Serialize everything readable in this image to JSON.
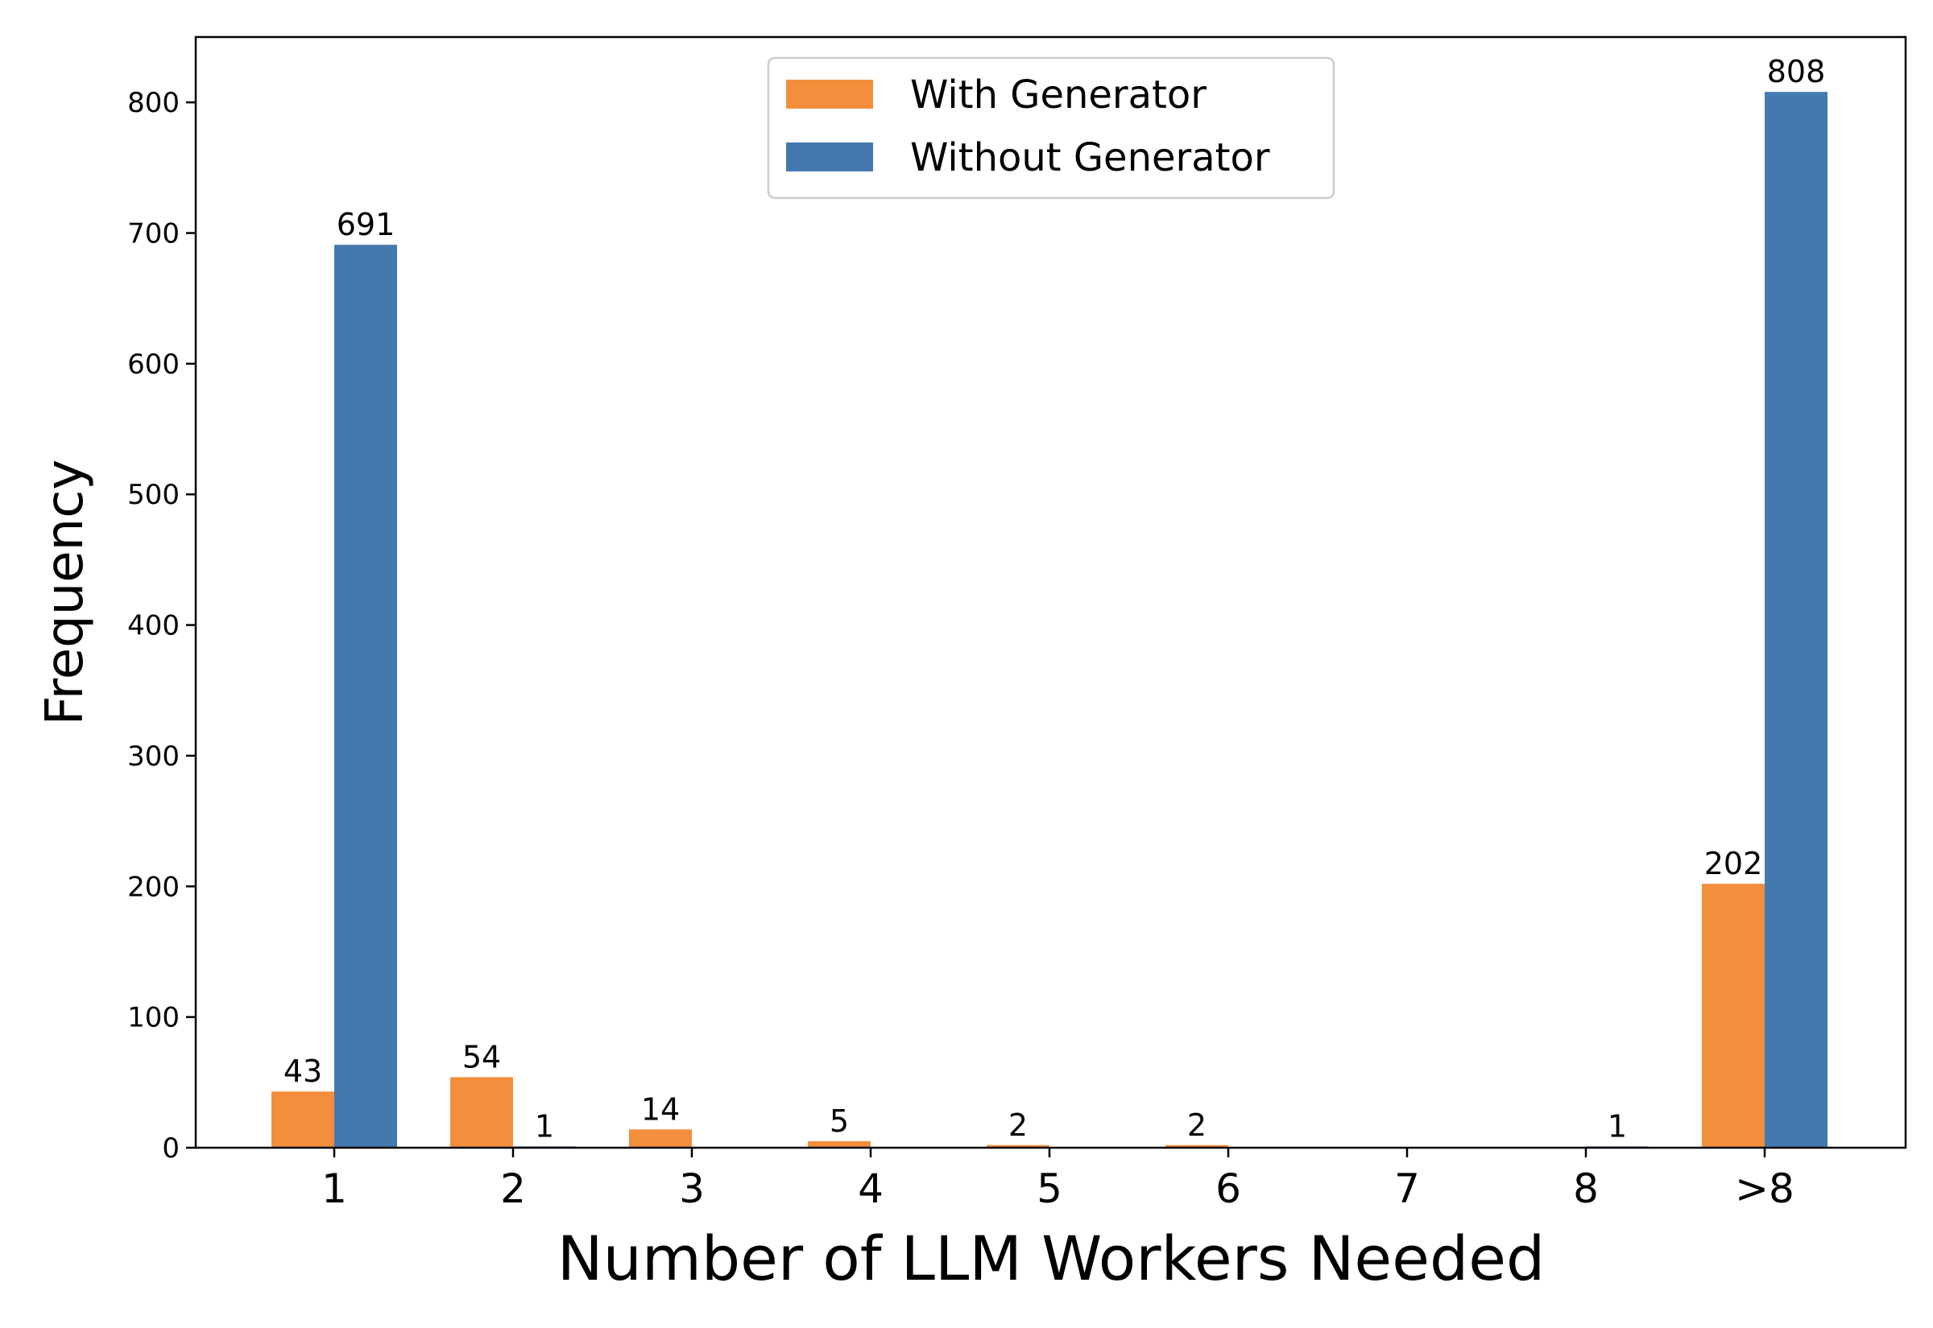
{
  "chart_data": {
    "type": "bar",
    "title": "",
    "xlabel": "Number of LLM Workers Needed",
    "ylabel": "Frequency",
    "categories": [
      "1",
      "2",
      "3",
      "4",
      "5",
      "6",
      "7",
      "8",
      ">8"
    ],
    "series": [
      {
        "name": "With Generator",
        "color": "#f28e3c",
        "values": [
          43,
          54,
          14,
          5,
          2,
          2,
          0,
          0,
          202
        ],
        "labels": [
          "43",
          "54",
          "14",
          "5",
          "2",
          "2",
          "",
          "",
          "202"
        ]
      },
      {
        "name": "Without Generator",
        "color": "#4479b0",
        "values": [
          691,
          1,
          0,
          0,
          0,
          0,
          0,
          1,
          808
        ],
        "labels": [
          "691",
          "1",
          "",
          "",
          "",
          "",
          "",
          "1",
          "808"
        ]
      }
    ],
    "ylim": [
      0,
      850
    ],
    "yticks": [
      0,
      100,
      200,
      300,
      400,
      500,
      600,
      700,
      800
    ],
    "grid": false,
    "legend_position": "top-center"
  }
}
